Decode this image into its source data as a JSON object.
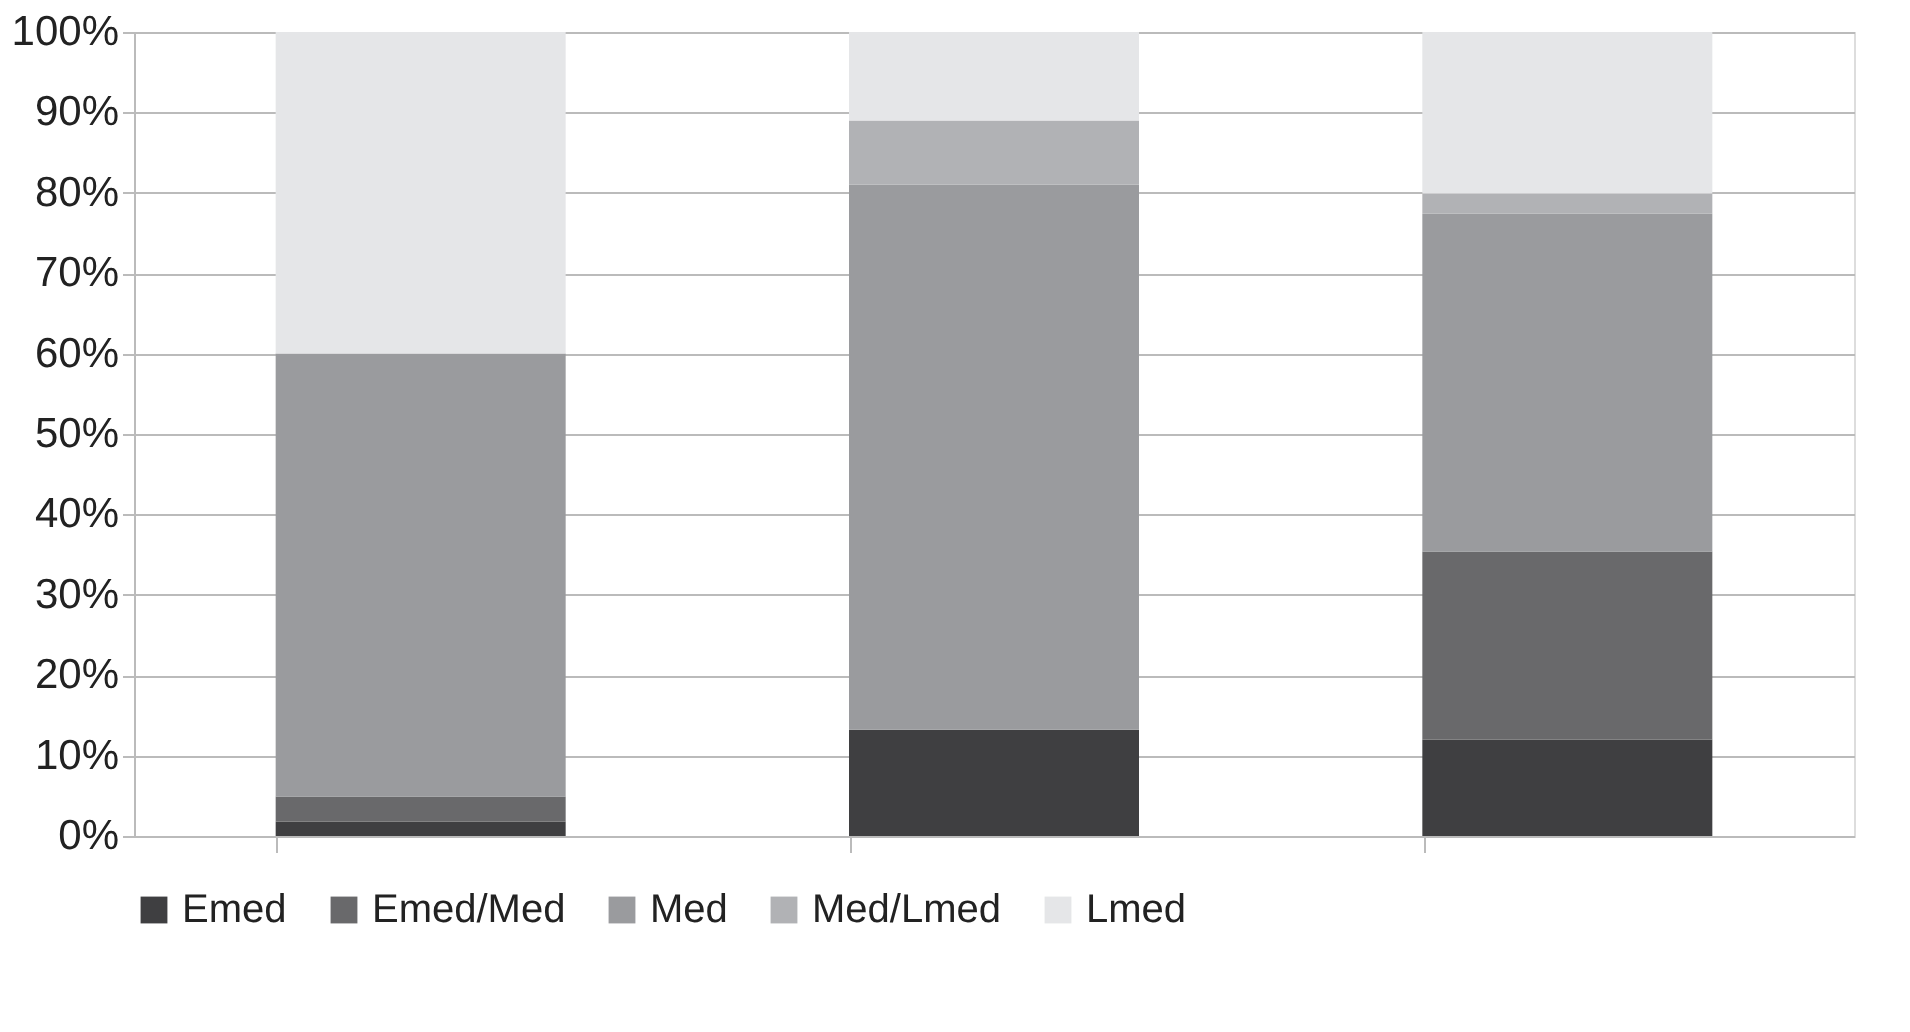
{
  "chart_data": {
    "type": "bar",
    "stacked": true,
    "categories": [
      null,
      null,
      null
    ],
    "series": [
      {
        "name": "Emed",
        "color": "#3f3f41",
        "values": [
          1.8,
          13.2,
          12
        ]
      },
      {
        "name": "Emed/Med",
        "color": "#69696b",
        "values": [
          3.1,
          0,
          23.4
        ]
      },
      {
        "name": "Med",
        "color": "#9a9b9e",
        "values": [
          55.1,
          67.8,
          42
        ]
      },
      {
        "name": "Med/Lmed",
        "color": "#b1b2b5",
        "values": [
          0,
          8,
          2.5
        ]
      },
      {
        "name": "Lmed",
        "color": "#e5e6e8",
        "values": [
          40,
          11,
          20.1
        ]
      }
    ],
    "ylim": [
      0,
      100
    ],
    "yticks": [
      {
        "value": 0,
        "label": "0%"
      },
      {
        "value": 10,
        "label": "10%"
      },
      {
        "value": 20,
        "label": "20%"
      },
      {
        "value": 30,
        "label": "30%"
      },
      {
        "value": 40,
        "label": "40%"
      },
      {
        "value": 50,
        "label": "50%"
      },
      {
        "value": 60,
        "label": "60%"
      },
      {
        "value": 70,
        "label": "70%"
      },
      {
        "value": 80,
        "label": "80%"
      },
      {
        "value": 90,
        "label": "90%"
      },
      {
        "value": 100,
        "label": "100%"
      }
    ],
    "grid": "y",
    "legend": "bottom",
    "tick_labels": "y"
  }
}
